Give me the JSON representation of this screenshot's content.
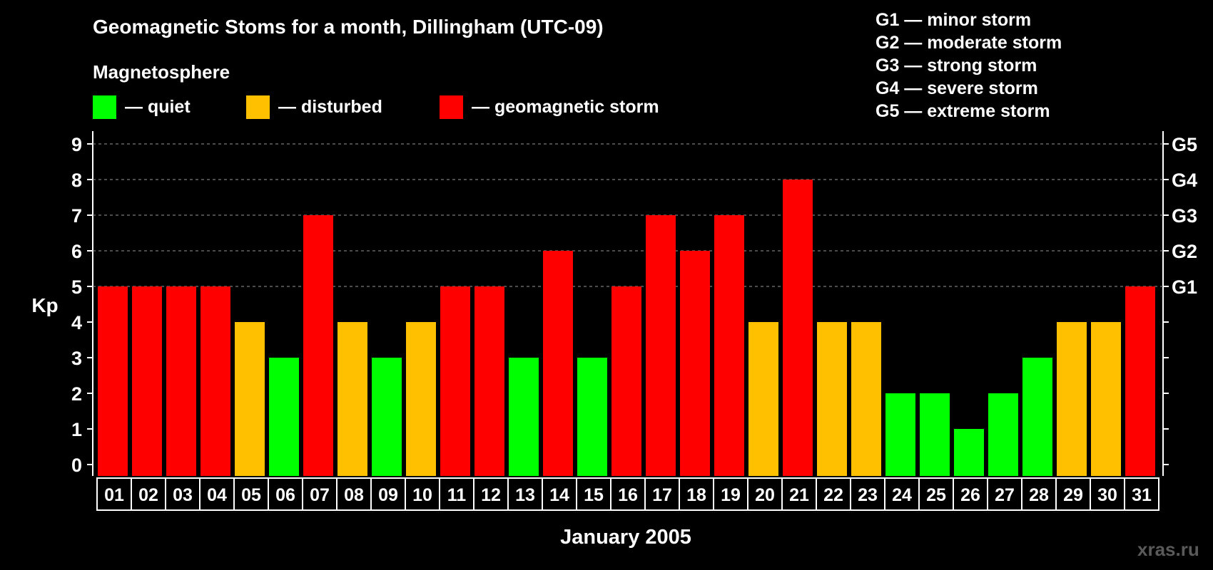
{
  "chart_data": {
    "type": "bar",
    "title": "Geomagnetic Stoms for a month, Dillingham (UTC-09)",
    "xlabel": "January 2005",
    "ylabel": "Kp",
    "ylim": [
      0,
      9
    ],
    "yticks": [
      "0",
      "1",
      "2",
      "3",
      "4",
      "5",
      "6",
      "7",
      "8",
      "9"
    ],
    "right_axis_labels": [
      {
        "kp": 5,
        "label": "G1"
      },
      {
        "kp": 6,
        "label": "G2"
      },
      {
        "kp": 7,
        "label": "G3"
      },
      {
        "kp": 8,
        "label": "G4"
      },
      {
        "kp": 9,
        "label": "G5"
      }
    ],
    "categories": [
      "01",
      "02",
      "03",
      "04",
      "05",
      "06",
      "07",
      "08",
      "09",
      "10",
      "11",
      "12",
      "13",
      "14",
      "15",
      "16",
      "17",
      "18",
      "19",
      "20",
      "21",
      "22",
      "23",
      "24",
      "25",
      "26",
      "27",
      "28",
      "29",
      "30",
      "31"
    ],
    "values": [
      5,
      5,
      5,
      5,
      4,
      3,
      7,
      4,
      3,
      4,
      5,
      5,
      3,
      6,
      3,
      5,
      7,
      6,
      7,
      4,
      8,
      4,
      4,
      2,
      2,
      1,
      2,
      3,
      4,
      4,
      5
    ],
    "colors": {
      "quiet": "#00ff00",
      "disturbed": "#ffc000",
      "storm": "#ff0000"
    },
    "grid": "dashed at Kp 5-9"
  },
  "legend": {
    "heading": "Magnetosphere",
    "items": [
      {
        "label": "— quiet",
        "color": "#00ff00"
      },
      {
        "label": "— disturbed",
        "color": "#ffc000"
      },
      {
        "label": "— geomagnetic storm",
        "color": "#ff0000"
      }
    ]
  },
  "storm_scale": [
    "G1 — minor storm",
    "G2 — moderate storm",
    "G3 — strong storm",
    "G4 — severe storm",
    "G5 — extreme storm"
  ],
  "watermark": "xras.ru"
}
